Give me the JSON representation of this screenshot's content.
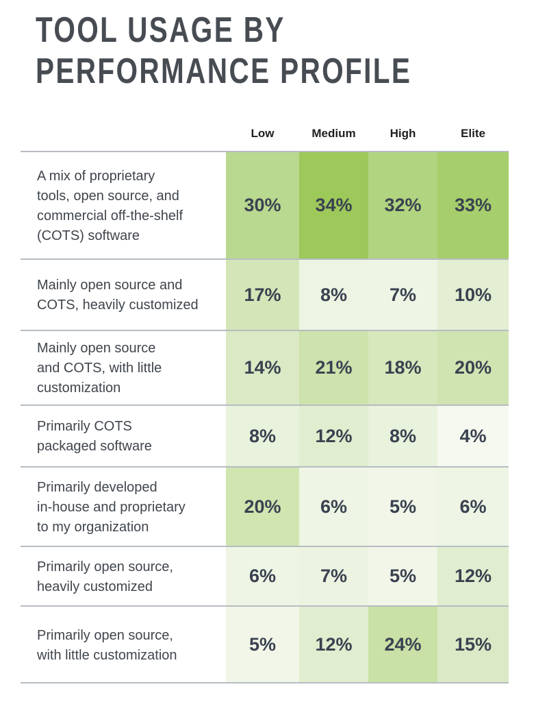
{
  "title_lines": [
    "TOOL USAGE BY",
    "PERFORMANCE PROFILE"
  ],
  "chart_data": {
    "type": "heatmap",
    "title": "TOOL USAGE BY PERFORMANCE PROFILE",
    "columns": [
      "Low",
      "Medium",
      "High",
      "Elite"
    ],
    "rows": [
      {
        "label": "A mix of proprietary\ntools, open source, and\ncommercial off-the-shelf\n(COTS) software",
        "values": [
          "30%",
          "34%",
          "32%",
          "33%"
        ],
        "colors": [
          "#b9d890",
          "#9dc85a",
          "#b1d480",
          "#a6ce6c"
        ]
      },
      {
        "label": "Mainly open source and\nCOTS, heavily customized",
        "values": [
          "17%",
          "8%",
          "7%",
          "10%"
        ],
        "colors": [
          "#d4e6b8",
          "#edf4e2",
          "#eef5e5",
          "#e3eed2"
        ]
      },
      {
        "label": "Mainly open source\nand COTS, with little\ncustomization",
        "values": [
          "14%",
          "21%",
          "18%",
          "20%"
        ],
        "colors": [
          "#dbeac5",
          "#cde2ac",
          "#d6e8bc",
          "#d0e4b2"
        ]
      },
      {
        "label": "Primarily COTS\npackaged software",
        "values": [
          "8%",
          "12%",
          "8%",
          "4%"
        ],
        "colors": [
          "#e9f2dc",
          "#e1edcf",
          "#e9f2dc",
          "#f6f9f0"
        ]
      },
      {
        "label": "Primarily developed\nin-house and proprietary\nto my organization",
        "values": [
          "20%",
          "6%",
          "5%",
          "6%"
        ],
        "colors": [
          "#d1e5b1",
          "#eef5e4",
          "#f1f6e8",
          "#eef5e4"
        ]
      },
      {
        "label": "Primarily open source,\nheavily customized",
        "values": [
          "6%",
          "7%",
          "5%",
          "12%"
        ],
        "colors": [
          "#eef5e4",
          "#ecf3e0",
          "#f1f6e8",
          "#e1edcf"
        ]
      },
      {
        "label": "Primarily open source,\nwith little customization",
        "values": [
          "5%",
          "12%",
          "24%",
          "15%"
        ],
        "colors": [
          "#f1f6e8",
          "#e1edcf",
          "#c9e0a6",
          "#dbe9c6"
        ]
      }
    ]
  }
}
